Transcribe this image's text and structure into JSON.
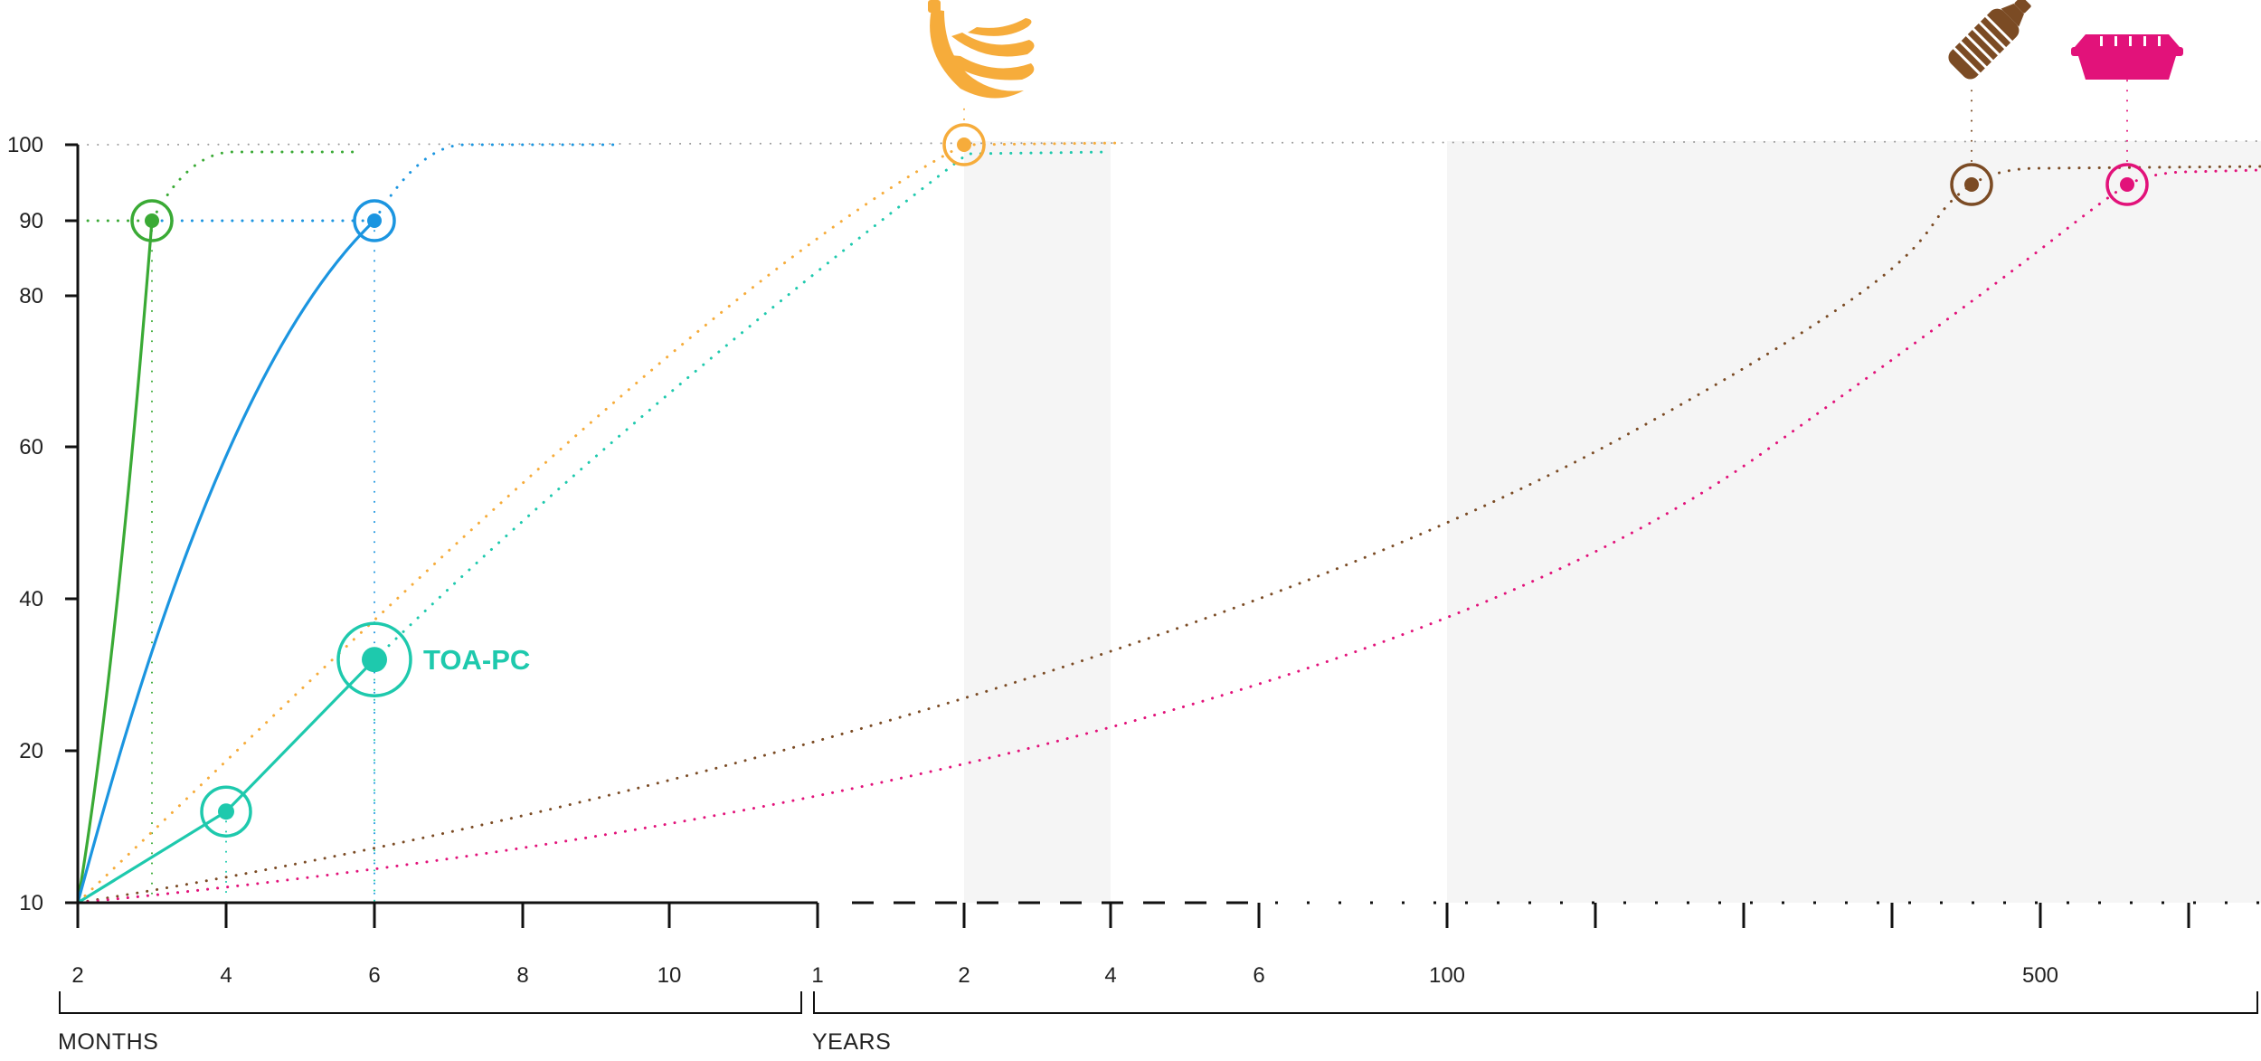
{
  "chart_data": {
    "type": "line",
    "title": "",
    "xlabel": "",
    "ylabel": "",
    "ylim": [
      10,
      100
    ],
    "y_ticks": [
      "10",
      "20",
      "40",
      "60",
      "80",
      "90",
      "100"
    ],
    "x_axis_groups": [
      {
        "label": "MONTHS",
        "tick_labels": [
          "2",
          "4",
          "6",
          "8",
          "10"
        ]
      },
      {
        "label": "YEARS",
        "tick_labels": [
          "1",
          "2",
          "4",
          "6",
          "100",
          "500"
        ]
      }
    ],
    "shaded_bands": [
      {
        "from": "2 years",
        "to": "4 years"
      },
      {
        "from": "100 years",
        "to": "beyond 500 years"
      }
    ],
    "grid": false,
    "legend": "none",
    "colors": {
      "green": "#3aaa35",
      "blue": "#1b95e0",
      "teal": "#1ec9ad",
      "orange": "#f6ac3b",
      "brown": "#7b4b24",
      "magenta": "#e2127a",
      "axis": "#111111",
      "band": "#f5f5f5"
    },
    "series": [
      {
        "color": "green",
        "style": "solid",
        "points": [
          {
            "x": "0 months",
            "y": 10
          },
          {
            "x": "3 months",
            "y": 90
          }
        ],
        "continuation": "dotted to 100 after 3 months"
      },
      {
        "color": "blue",
        "style": "solid",
        "points": [
          {
            "x": "0 months",
            "y": 10
          },
          {
            "x": "6 months",
            "y": 90
          }
        ],
        "continuation": "dotted to 100 after 6 months"
      },
      {
        "color": "teal",
        "style": "solid",
        "label": "TOA-PC",
        "points": [
          {
            "x": "0 months",
            "y": 10
          },
          {
            "x": "4 months",
            "y": 16
          },
          {
            "x": "6 months",
            "y": 32
          }
        ],
        "continuation": "dotted projection reaching ~100 near 2 years"
      },
      {
        "color": "orange",
        "style": "dotted",
        "icon": "banana-icon",
        "marker": {
          "x": "2 years",
          "y": 100
        }
      },
      {
        "color": "brown",
        "style": "dotted",
        "icon": "plastic-bottle-icon",
        "marker": {
          "x": "~450 years",
          "y": 95
        }
      },
      {
        "color": "magenta",
        "style": "dotted",
        "icon": "food-container-icon",
        "marker": {
          "x": "~600 years",
          "y": 95
        }
      }
    ],
    "annotations": [
      "TOA-PC"
    ]
  }
}
